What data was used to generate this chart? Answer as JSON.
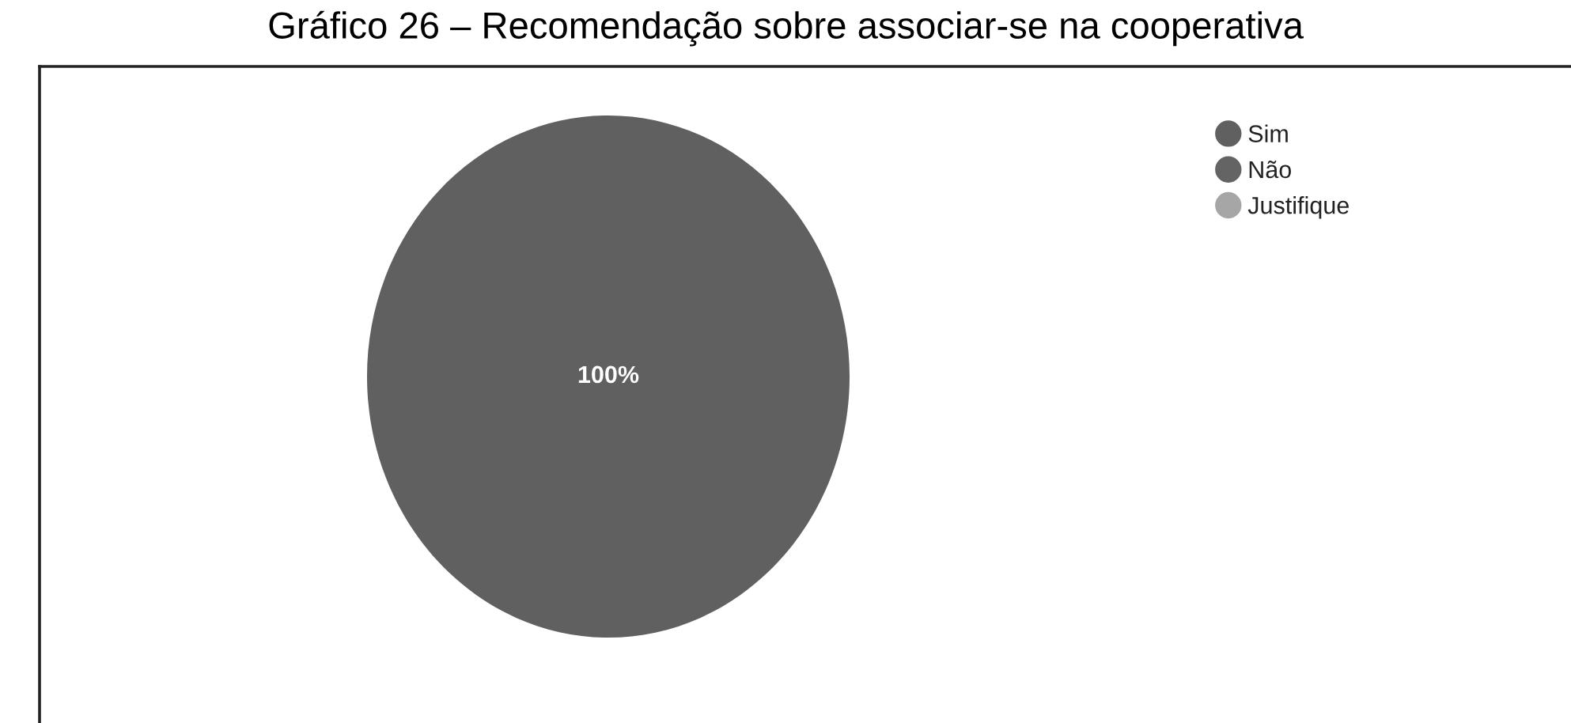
{
  "chart_data": {
    "type": "pie",
    "title": "Gráfico 26 – Recomendação sobre associar-se na cooperativa",
    "categories": [
      "Sim",
      "Não",
      "Justifique"
    ],
    "values": [
      100,
      0,
      0
    ],
    "colors": [
      "#606060",
      "#646464",
      "#a6a6a6"
    ],
    "value_labels": [
      "100%",
      null,
      null
    ],
    "legend": "top right"
  }
}
